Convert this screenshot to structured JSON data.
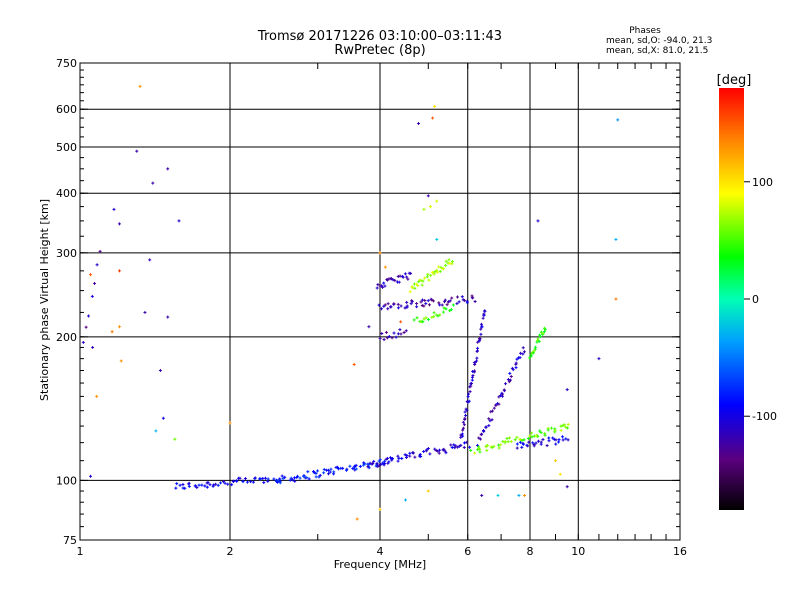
{
  "chart_data": {
    "type": "scatter",
    "title": "Tromsø 20171226 03:10:00–03:11:43",
    "subtitle": "RwPretec (8p)",
    "stats": {
      "heading": "Phases",
      "line_o": "mean, sd,O: -94.0, 21.3",
      "line_x": "mean, sd,X:  81.0, 21.5"
    },
    "xlabel": "Frequency [MHz]",
    "ylabel": "Stationary phase Virtual Height [km]",
    "xscale": "log",
    "yscale": "log",
    "xlim": [
      1,
      16
    ],
    "ylim": [
      75,
      750
    ],
    "x_ticks": [
      1,
      2,
      4,
      6,
      8,
      10,
      16
    ],
    "y_ticks": [
      75,
      100,
      200,
      300,
      400,
      500,
      600,
      750
    ],
    "grid": true,
    "colorbar": {
      "label": "[deg]",
      "range": [
        -180,
        180
      ],
      "ticks": [
        100,
        0,
        -100
      ]
    },
    "traces": [
      {
        "name": "",
        "phase": -95,
        "x0": 1.55,
        "x1": 2.55,
        "y0": 97,
        "y1": 101,
        "n": 55
      },
      {
        "name": "",
        "phase": -85,
        "x0": 2.5,
        "x1": 4.2,
        "y0": 100,
        "y1": 110,
        "n": 70
      },
      {
        "name": "",
        "phase": -105,
        "x0": 3.8,
        "x1": 6.0,
        "y0": 108,
        "y1": 119,
        "n": 55
      },
      {
        "name": "",
        "phase": -115,
        "x0": 5.8,
        "x1": 6.5,
        "y0": 120,
        "y1": 230,
        "n": 55
      },
      {
        "name": "",
        "phase": -110,
        "x0": 6.3,
        "x1": 7.8,
        "y0": 120,
        "y1": 190,
        "n": 45
      },
      {
        "name": "",
        "phase": -100,
        "x0": 7.5,
        "x1": 9.5,
        "y0": 118,
        "y1": 122,
        "n": 30
      },
      {
        "name": "",
        "phase": 60,
        "x0": 6.1,
        "x1": 9.6,
        "y0": 115,
        "y1": 130,
        "n": 55
      },
      {
        "name": "",
        "phase": 45,
        "x0": 8.0,
        "x1": 8.6,
        "y0": 180,
        "y1": 210,
        "n": 20
      },
      {
        "name": "",
        "phase": -120,
        "x0": 4.0,
        "x1": 6.2,
        "y0": 232,
        "y1": 240,
        "n": 55
      },
      {
        "name": "",
        "phase": -115,
        "x0": 3.95,
        "x1": 4.6,
        "y0": 255,
        "y1": 270,
        "n": 25
      },
      {
        "name": "",
        "phase": 70,
        "x0": 4.6,
        "x1": 5.6,
        "y0": 250,
        "y1": 290,
        "n": 35
      },
      {
        "name": "",
        "phase": 50,
        "x0": 4.7,
        "x1": 5.6,
        "y0": 215,
        "y1": 230,
        "n": 20
      },
      {
        "name": "",
        "phase": -120,
        "x0": 4.0,
        "x1": 4.5,
        "y0": 200,
        "y1": 205,
        "n": 14
      },
      {
        "name": "",
        "phase": -120,
        "x0": 1.0,
        "x1": 1.1,
        "y0": 180,
        "y1": 300,
        "n": 8
      }
    ],
    "points": [
      {
        "x": 1.32,
        "y": 670,
        "phase": 130
      },
      {
        "x": 1.3,
        "y": 490,
        "phase": -120
      },
      {
        "x": 1.5,
        "y": 450,
        "phase": -120
      },
      {
        "x": 1.4,
        "y": 420,
        "phase": -120
      },
      {
        "x": 1.58,
        "y": 350,
        "phase": -110
      },
      {
        "x": 1.2,
        "y": 345,
        "phase": -120
      },
      {
        "x": 1.17,
        "y": 370,
        "phase": -110
      },
      {
        "x": 1.38,
        "y": 290,
        "phase": -120
      },
      {
        "x": 1.05,
        "y": 270,
        "phase": 150
      },
      {
        "x": 1.2,
        "y": 275,
        "phase": 160
      },
      {
        "x": 1.16,
        "y": 205,
        "phase": 140
      },
      {
        "x": 1.2,
        "y": 210,
        "phase": 130
      },
      {
        "x": 1.35,
        "y": 225,
        "phase": -120
      },
      {
        "x": 1.5,
        "y": 220,
        "phase": -120
      },
      {
        "x": 1.06,
        "y": 190,
        "phase": -120
      },
      {
        "x": 1.21,
        "y": 178,
        "phase": 130
      },
      {
        "x": 1.08,
        "y": 150,
        "phase": 130
      },
      {
        "x": 1.45,
        "y": 170,
        "phase": -120
      },
      {
        "x": 1.47,
        "y": 135,
        "phase": -100
      },
      {
        "x": 1.42,
        "y": 127,
        "phase": -30
      },
      {
        "x": 1.55,
        "y": 122,
        "phase": 60
      },
      {
        "x": 1.05,
        "y": 102,
        "phase": -110
      },
      {
        "x": 2.0,
        "y": 132,
        "phase": 130
      },
      {
        "x": 3.6,
        "y": 83,
        "phase": 130
      },
      {
        "x": 3.55,
        "y": 175,
        "phase": 150
      },
      {
        "x": 4.0,
        "y": 300,
        "phase": 130
      },
      {
        "x": 4.78,
        "y": 560,
        "phase": -120
      },
      {
        "x": 5.1,
        "y": 575,
        "phase": 150
      },
      {
        "x": 5.15,
        "y": 608,
        "phase": 100
      },
      {
        "x": 5.0,
        "y": 395,
        "phase": -120
      },
      {
        "x": 5.05,
        "y": 375,
        "phase": 80
      },
      {
        "x": 4.9,
        "y": 370,
        "phase": 70
      },
      {
        "x": 5.2,
        "y": 385,
        "phase": 80
      },
      {
        "x": 8.3,
        "y": 350,
        "phase": -110
      },
      {
        "x": 12.0,
        "y": 570,
        "phase": -40
      },
      {
        "x": 11.9,
        "y": 320,
        "phase": -30
      },
      {
        "x": 11.9,
        "y": 240,
        "phase": 140
      },
      {
        "x": 11.0,
        "y": 180,
        "phase": -110
      },
      {
        "x": 9.5,
        "y": 155,
        "phase": -110
      },
      {
        "x": 9.0,
        "y": 110,
        "phase": 110
      },
      {
        "x": 9.2,
        "y": 103,
        "phase": 100
      },
      {
        "x": 9.5,
        "y": 97,
        "phase": -120
      },
      {
        "x": 4.5,
        "y": 91,
        "phase": -30
      },
      {
        "x": 5.0,
        "y": 95,
        "phase": 110
      },
      {
        "x": 6.4,
        "y": 93,
        "phase": -120
      },
      {
        "x": 6.9,
        "y": 93,
        "phase": -20
      },
      {
        "x": 7.6,
        "y": 93,
        "phase": -30
      },
      {
        "x": 7.8,
        "y": 93,
        "phase": 130
      },
      {
        "x": 4.0,
        "y": 87,
        "phase": 110
      },
      {
        "x": 5.2,
        "y": 320,
        "phase": -20
      },
      {
        "x": 4.1,
        "y": 280,
        "phase": 130
      },
      {
        "x": 4.4,
        "y": 215,
        "phase": 150
      },
      {
        "x": 3.8,
        "y": 210,
        "phase": -120
      }
    ]
  }
}
